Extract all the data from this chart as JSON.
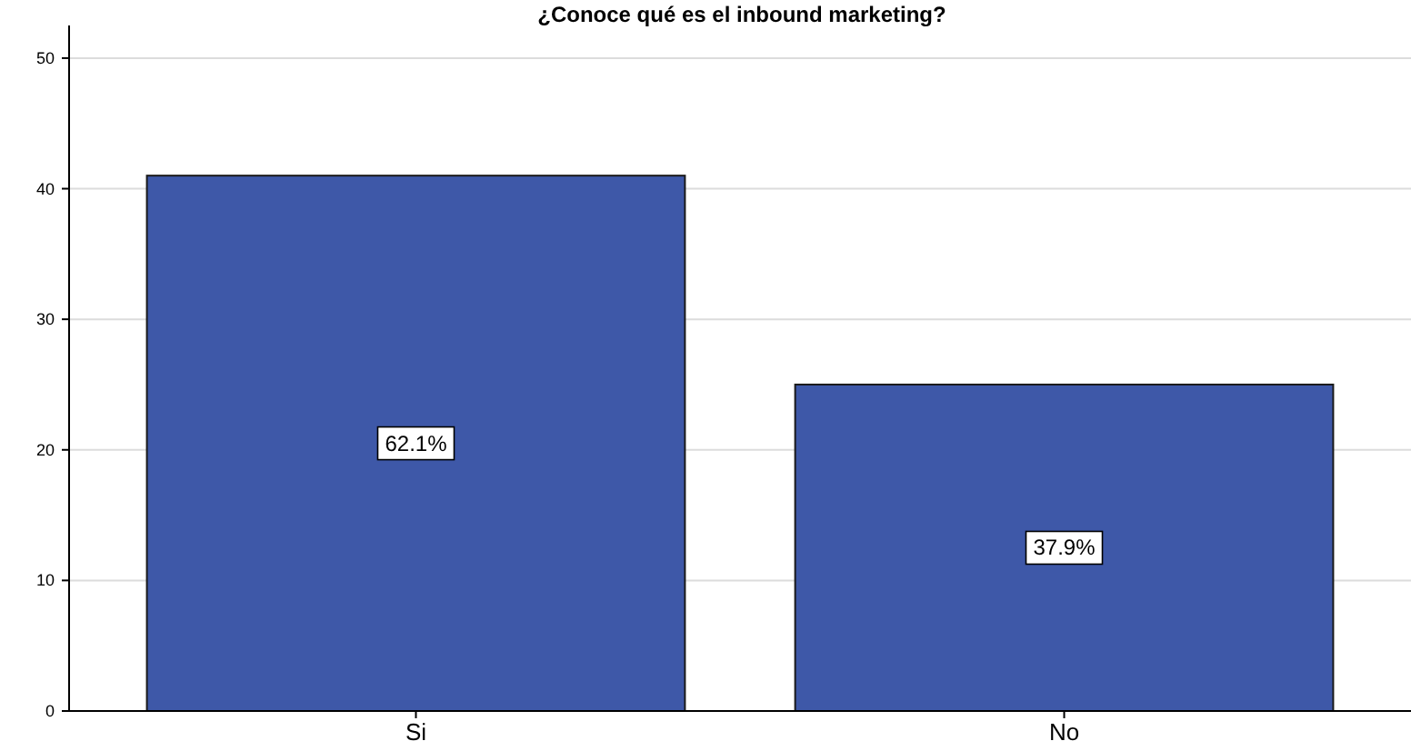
{
  "chart_data": {
    "type": "bar",
    "title": "¿Conoce qué es el inbound marketing?",
    "categories": [
      "Si",
      "No"
    ],
    "values": [
      41,
      25
    ],
    "annotations": [
      {
        "text": "62.1%",
        "x": "Si",
        "y": 20.5
      },
      {
        "text": "37.9%",
        "x": "No",
        "y": 12.5
      }
    ],
    "color": "#3e58a8",
    "ylim": [
      0,
      52.5
    ],
    "yticks": [
      0,
      10,
      20,
      30,
      40,
      50
    ],
    "grid": "y"
  }
}
